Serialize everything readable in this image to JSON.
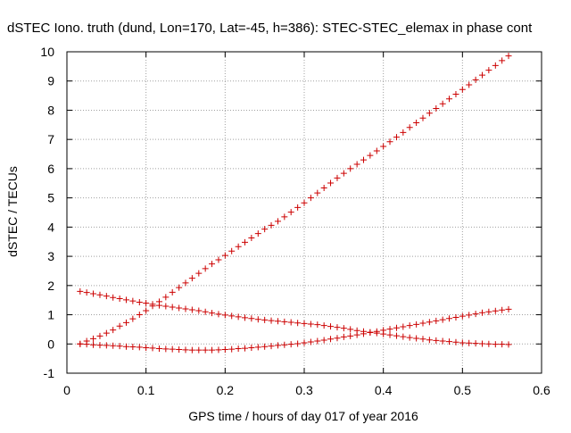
{
  "chart_data": {
    "type": "scatter",
    "title": "dSTEC Iono. truth (dund, Lon=170, Lat=-45, h=386): STEC-STEC_elemax in phase cont",
    "xlabel": "GPS time / hours of day 017 of year 2016",
    "ylabel": "dSTEC  / TECUs",
    "xlim": [
      0,
      0.6
    ],
    "ylim": [
      -1,
      10
    ],
    "x_ticks": [
      "0",
      "0.1",
      "0.2",
      "0.3",
      "0.4",
      "0.5",
      "0.6"
    ],
    "y_ticks": [
      "-1",
      "0",
      "1",
      "2",
      "3",
      "4",
      "5",
      "6",
      "7",
      "8",
      "9",
      "10"
    ],
    "grid": true,
    "marker": "+",
    "marker_color": "#cc0000",
    "series": [
      {
        "x": [
          0.0167,
          0.025,
          0.0333,
          0.0417,
          0.05,
          0.0583,
          0.0667,
          0.075,
          0.0833,
          0.0917,
          0.1,
          0.1083,
          0.1167,
          0.125,
          0.1333,
          0.1417,
          0.15,
          0.1583,
          0.1667,
          0.175,
          0.1833,
          0.1917,
          0.2,
          0.2083,
          0.2167,
          0.225,
          0.2333,
          0.2417,
          0.25,
          0.2583,
          0.2667,
          0.275,
          0.2833,
          0.2917,
          0.3,
          0.3083,
          0.3167,
          0.325,
          0.3333,
          0.3417,
          0.35,
          0.3583,
          0.3667,
          0.375,
          0.3833,
          0.3917,
          0.4,
          0.4083,
          0.4167,
          0.425,
          0.4333,
          0.4417,
          0.45,
          0.4583,
          0.4667,
          0.475,
          0.4833,
          0.4917,
          0.5,
          0.5083,
          0.5167,
          0.525,
          0.5333,
          0.5417,
          0.55,
          0.5583
        ],
        "y": [
          0.0,
          0.1,
          0.18,
          0.27,
          0.37,
          0.48,
          0.61,
          0.73,
          0.86,
          1.0,
          1.14,
          1.3,
          1.45,
          1.6,
          1.77,
          1.93,
          2.09,
          2.25,
          2.42,
          2.58,
          2.74,
          2.88,
          3.03,
          3.18,
          3.33,
          3.48,
          3.63,
          3.78,
          3.93,
          4.06,
          4.2,
          4.35,
          4.51,
          4.67,
          4.83,
          5.0,
          5.17,
          5.34,
          5.51,
          5.68,
          5.84,
          6.0,
          6.15,
          6.3,
          6.45,
          6.61,
          6.76,
          6.92,
          7.08,
          7.24,
          7.41,
          7.57,
          7.73,
          7.9,
          8.06,
          8.22,
          8.39,
          8.55,
          8.71,
          8.87,
          9.04,
          9.2,
          9.37,
          9.53,
          9.7,
          9.86
        ]
      },
      {
        "x": [
          0.0167,
          0.025,
          0.0333,
          0.0417,
          0.05,
          0.0583,
          0.0667,
          0.075,
          0.0833,
          0.0917,
          0.1,
          0.1083,
          0.1167,
          0.125,
          0.1333,
          0.1417,
          0.15,
          0.1583,
          0.1667,
          0.175,
          0.1833,
          0.1917,
          0.2,
          0.2083,
          0.2167,
          0.225,
          0.2333,
          0.2417,
          0.25,
          0.2583,
          0.2667,
          0.275,
          0.2833,
          0.2917,
          0.3,
          0.3083,
          0.3167,
          0.325,
          0.3333,
          0.3417,
          0.35,
          0.3583,
          0.3667,
          0.375,
          0.3833,
          0.3917,
          0.4,
          0.4083,
          0.4167,
          0.425,
          0.4333,
          0.4417,
          0.45,
          0.4583,
          0.4667,
          0.475,
          0.4833,
          0.4917,
          0.5,
          0.5083,
          0.5167,
          0.525,
          0.5333,
          0.5417,
          0.55,
          0.5583
        ],
        "y": [
          1.8,
          1.76,
          1.72,
          1.68,
          1.64,
          1.59,
          1.55,
          1.51,
          1.47,
          1.43,
          1.4,
          1.36,
          1.32,
          1.29,
          1.26,
          1.23,
          1.2,
          1.17,
          1.14,
          1.1,
          1.06,
          1.02,
          0.99,
          0.96,
          0.93,
          0.9,
          0.87,
          0.84,
          0.82,
          0.8,
          0.78,
          0.76,
          0.74,
          0.72,
          0.7,
          0.68,
          0.66,
          0.63,
          0.6,
          0.57,
          0.54,
          0.5,
          0.46,
          0.43,
          0.4,
          0.37,
          0.34,
          0.31,
          0.28,
          0.25,
          0.22,
          0.19,
          0.17,
          0.14,
          0.12,
          0.1,
          0.08,
          0.06,
          0.04,
          0.03,
          0.02,
          0.01,
          0.0,
          -0.01,
          -0.01,
          -0.02
        ]
      },
      {
        "x": [
          0.0167,
          0.025,
          0.0333,
          0.0417,
          0.05,
          0.0583,
          0.0667,
          0.075,
          0.0833,
          0.0917,
          0.1,
          0.1083,
          0.1167,
          0.125,
          0.1333,
          0.1417,
          0.15,
          0.1583,
          0.1667,
          0.175,
          0.1833,
          0.1917,
          0.2,
          0.2083,
          0.2167,
          0.225,
          0.2333,
          0.2417,
          0.25,
          0.2583,
          0.2667,
          0.275,
          0.2833,
          0.2917,
          0.3,
          0.3083,
          0.3167,
          0.325,
          0.3333,
          0.3417,
          0.35,
          0.3583,
          0.3667,
          0.375,
          0.3833,
          0.3917,
          0.4,
          0.4083,
          0.4167,
          0.425,
          0.4333,
          0.4417,
          0.45,
          0.4583,
          0.4667,
          0.475,
          0.4833,
          0.4917,
          0.5,
          0.5083,
          0.5167,
          0.525,
          0.5333,
          0.5417,
          0.55,
          0.5583
        ],
        "y": [
          0.0,
          -0.01,
          -0.03,
          -0.04,
          -0.05,
          -0.06,
          -0.07,
          -0.09,
          -0.1,
          -0.11,
          -0.13,
          -0.14,
          -0.16,
          -0.17,
          -0.18,
          -0.19,
          -0.2,
          -0.21,
          -0.21,
          -0.21,
          -0.21,
          -0.2,
          -0.19,
          -0.18,
          -0.16,
          -0.15,
          -0.13,
          -0.11,
          -0.09,
          -0.07,
          -0.05,
          -0.03,
          -0.01,
          0.01,
          0.04,
          0.07,
          0.1,
          0.13,
          0.17,
          0.2,
          0.24,
          0.27,
          0.31,
          0.35,
          0.39,
          0.43,
          0.47,
          0.51,
          0.55,
          0.59,
          0.63,
          0.67,
          0.71,
          0.75,
          0.79,
          0.83,
          0.87,
          0.91,
          0.95,
          0.99,
          1.03,
          1.07,
          1.1,
          1.13,
          1.16,
          1.19
        ]
      }
    ]
  }
}
